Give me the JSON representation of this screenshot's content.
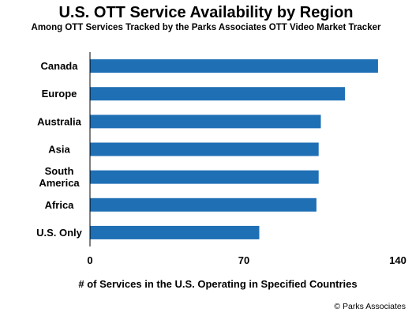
{
  "chart_data": {
    "type": "bar",
    "orientation": "horizontal",
    "title": "U.S. OTT Service Availability by Region",
    "subtitle": "Among OTT Services Tracked by the Parks Associates OTT Video Market Tracker",
    "categories": [
      "Canada",
      "Europe",
      "Australia",
      "Asia",
      "South America",
      "Africa",
      "U.S. Only"
    ],
    "category_lines": [
      [
        "Canada"
      ],
      [
        "Europe"
      ],
      [
        "Australia"
      ],
      [
        "Asia"
      ],
      [
        "South",
        "America"
      ],
      [
        "Africa"
      ],
      [
        "U.S. Only"
      ]
    ],
    "values": [
      131,
      116,
      105,
      104,
      104,
      103,
      77
    ],
    "xlabel": "# of Services in the U.S. Operating in Specified Countries",
    "ylabel": "",
    "xlim": [
      0,
      140
    ],
    "xticks": [
      "0",
      "70",
      "140"
    ],
    "grid": false,
    "bar_color": "#1f6fb5"
  },
  "footer": {
    "copyright": "© Parks Associates"
  }
}
